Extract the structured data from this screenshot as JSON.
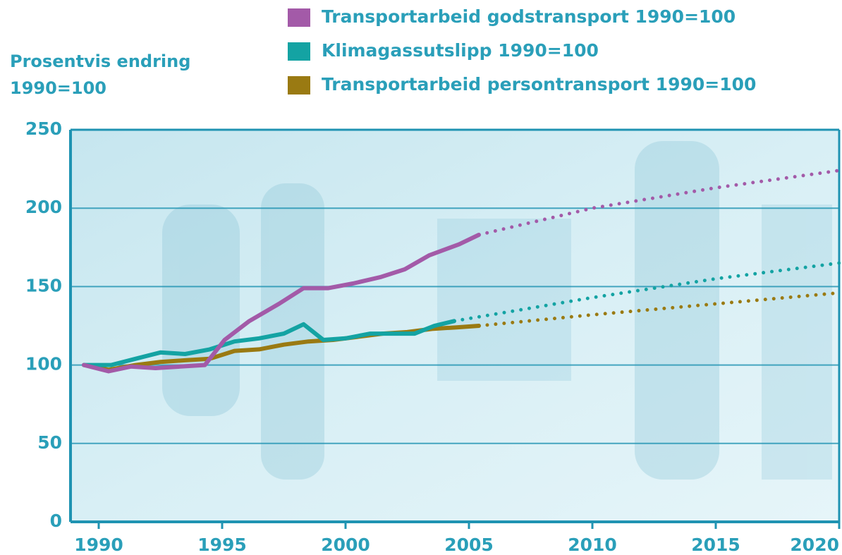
{
  "chart_data": {
    "type": "line",
    "y_label": [
      "Prosentvis endring",
      "1990=100"
    ],
    "xlim": [
      1988.857,
      2020
    ],
    "xticks": [
      1990,
      1995,
      2000,
      2005,
      2010,
      2015,
      2020
    ],
    "ylim": [
      0,
      250
    ],
    "yticks": [
      0,
      50,
      100,
      150,
      200,
      250
    ],
    "grid": true,
    "legend": "top-right",
    "series": [
      {
        "name": "Transportarbeid godstransport 1990=100",
        "color": "#a35aa8",
        "x": [
          1989.4,
          1990.4,
          1991.3,
          1992.3,
          1993.3,
          1994.3,
          1995.1,
          1996.1,
          1997.3,
          1998.3,
          1999.3,
          2000.3,
          2001.4,
          2002.4,
          2003.4,
          2004.6,
          2005.4
        ],
        "values": [
          100,
          96,
          99,
          98,
          99,
          100,
          116,
          128,
          139,
          149,
          149,
          152,
          156,
          161,
          170,
          177,
          183
        ],
        "projection": {
          "x": [
            2005.4,
            2010,
            2015,
            2020
          ],
          "values": [
            183,
            200,
            213,
            224
          ]
        }
      },
      {
        "name": "Klimagassutslipp 1990=100",
        "color": "#14a3a3",
        "x": [
          1989.4,
          1990.5,
          1991.5,
          1992.5,
          1993.5,
          1994.5,
          1995.5,
          1996.5,
          1997.5,
          1998.3,
          1999.1,
          2000.0,
          2001.0,
          2002.0,
          2002.8,
          2003.6,
          2004.4
        ],
        "values": [
          100,
          100,
          104,
          108,
          107,
          110,
          115,
          117,
          120,
          126,
          116,
          117,
          120,
          120,
          120,
          125,
          128
        ],
        "projection": {
          "x": [
            2004.4,
            2010,
            2015,
            2020
          ],
          "values": [
            128,
            143,
            155,
            165
          ]
        }
      },
      {
        "name": "Transportarbeid persontransport 1990=100",
        "color": "#9a7a12",
        "x": [
          1989.4,
          1990.4,
          1991.5,
          1992.5,
          1993.5,
          1994.5,
          1995.5,
          1996.5,
          1997.5,
          1998.5,
          1999.5,
          2000.5,
          2001.5,
          2002.5,
          2003.5,
          2004.5,
          2005.4
        ],
        "values": [
          100,
          97,
          100,
          102,
          103,
          104,
          109,
          110,
          113,
          115,
          116,
          118,
          120,
          121,
          123,
          124,
          125
        ],
        "projection": {
          "x": [
            2005.4,
            2010,
            2015,
            2020
          ],
          "values": [
            125,
            132,
            139,
            146
          ]
        }
      }
    ]
  }
}
